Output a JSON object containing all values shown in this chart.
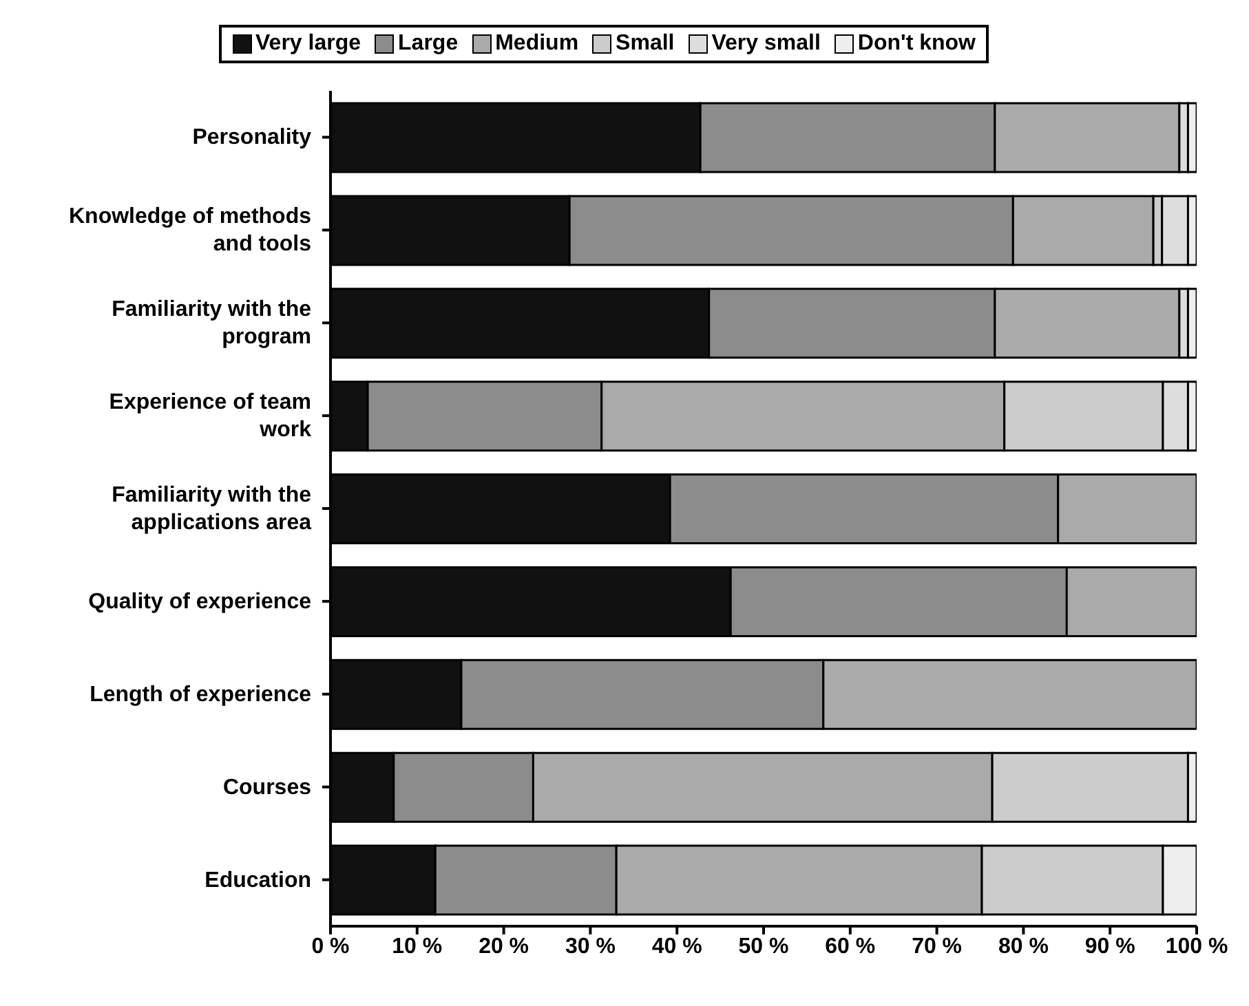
{
  "chart_data": {
    "type": "bar",
    "orientation": "horizontal",
    "stacked": true,
    "legend": "top",
    "grid": false,
    "categories": [
      "Personality",
      "Knowledge of methods and tools",
      "Familiarity with the program",
      "Experience of team work",
      "Familiarity with the applications area",
      "Quality of experience",
      "Length of experience",
      "Courses",
      "Education"
    ],
    "xlim": [
      0,
      100
    ],
    "xticks": [
      {
        "value": 0,
        "label": "0 %"
      },
      {
        "value": 10,
        "label": "10 %"
      },
      {
        "value": 20,
        "label": "20 %"
      },
      {
        "value": 30,
        "label": "30 %"
      },
      {
        "value": 40,
        "label": "40 %"
      },
      {
        "value": 50,
        "label": "50 %"
      },
      {
        "value": 60,
        "label": "60 %"
      },
      {
        "value": 70,
        "label": "70 %"
      },
      {
        "value": 80,
        "label": "80 %"
      },
      {
        "value": 90,
        "label": "90 %"
      },
      {
        "value": 100,
        "label": "100 %"
      }
    ],
    "series": [
      {
        "name": "Very large",
        "color": "#111111",
        "values": [
          42.7,
          27.6,
          43.7,
          4.3,
          39.2,
          46.2,
          15.1,
          7.3,
          12.1
        ]
      },
      {
        "name": "Large",
        "color": "#8c8c8c",
        "values": [
          34.0,
          51.2,
          33.0,
          27.0,
          44.8,
          38.8,
          41.8,
          16.1,
          20.9
        ]
      },
      {
        "name": "Medium",
        "color": "#aaaaaa",
        "values": [
          21.3,
          16.2,
          21.3,
          46.5,
          16.0,
          15.0,
          43.1,
          53.0,
          42.2
        ]
      },
      {
        "name": "Small",
        "color": "#cccccc",
        "values": [
          0,
          1.0,
          0,
          18.3,
          0,
          0,
          0,
          22.6,
          20.9
        ]
      },
      {
        "name": "Very small",
        "color": "#dddddd",
        "values": [
          1.0,
          3.0,
          1.0,
          2.9,
          0,
          0,
          0,
          0,
          0
        ]
      },
      {
        "name": "Don't know",
        "color": "#eeeeee",
        "values": [
          1.0,
          1.0,
          1.0,
          1.0,
          0,
          0,
          0,
          1.0,
          3.9
        ]
      }
    ]
  }
}
